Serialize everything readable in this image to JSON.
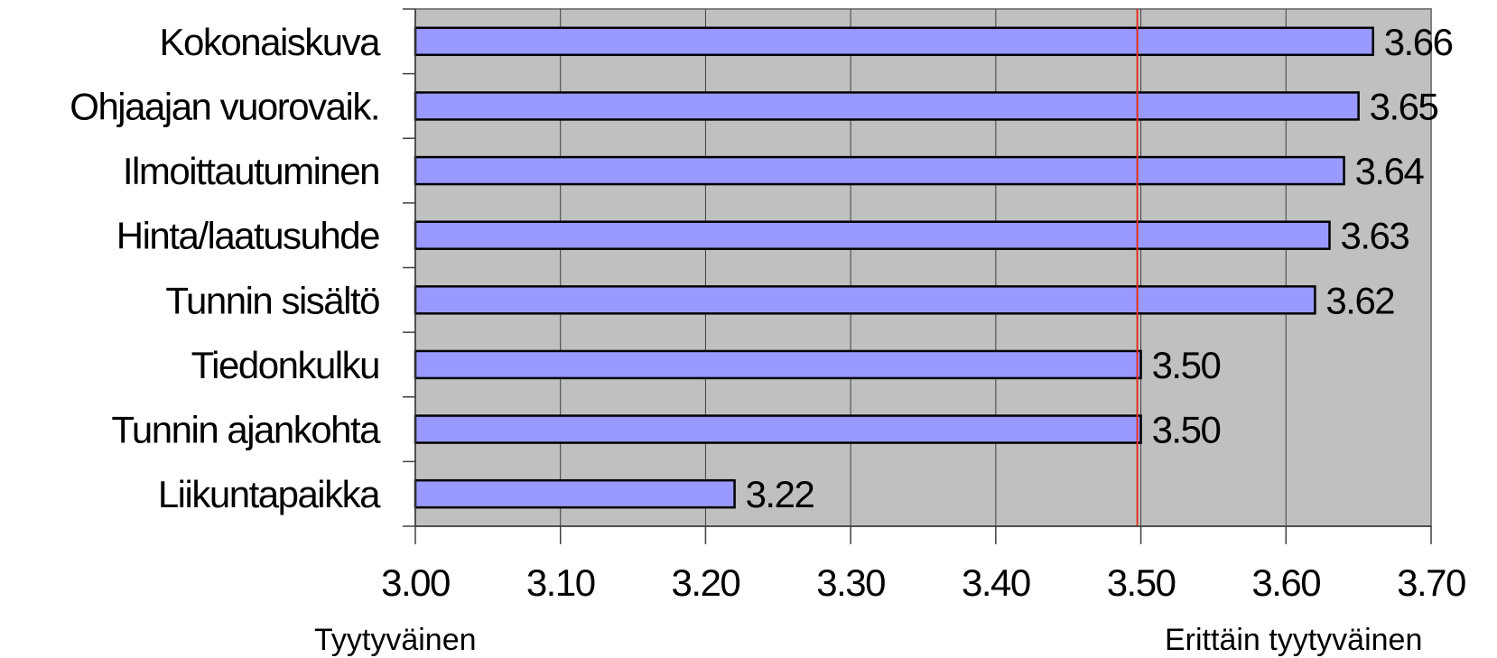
{
  "chart_data": {
    "type": "bar",
    "orientation": "horizontal",
    "categories": [
      "Kokonaiskuva",
      "Ohjaajan vuorovaik.",
      "Ilmoittautuminen",
      "Hinta/laatusuhde",
      "Tunnin sisältö",
      "Tiedonkulku",
      "Tunnin ajankohta",
      "Liikuntapaikka"
    ],
    "values": [
      3.66,
      3.65,
      3.64,
      3.63,
      3.62,
      3.5,
      3.5,
      3.22
    ],
    "value_labels": [
      "3.66",
      "3.65",
      "3.64",
      "3.63",
      "3.62",
      "3.50",
      "3.50",
      "3.22"
    ],
    "xlim": [
      3.0,
      3.7
    ],
    "xticks": [
      3.0,
      3.1,
      3.2,
      3.3,
      3.4,
      3.5,
      3.6,
      3.7
    ],
    "xtick_labels": [
      "3.00",
      "3.10",
      "3.20",
      "3.30",
      "3.40",
      "3.50",
      "3.60",
      "3.70"
    ],
    "axis_end_labels": {
      "left": "Tyytyväinen",
      "right": "Erittäin tyytyväinen"
    },
    "reference_line": {
      "value": 3.5,
      "color": "#e03020"
    },
    "grid": true,
    "colors": {
      "bar_fill": "#9999ff",
      "bar_stroke": "#000000",
      "plot_bg": "#c0c0c0",
      "grid": "#404040"
    }
  }
}
